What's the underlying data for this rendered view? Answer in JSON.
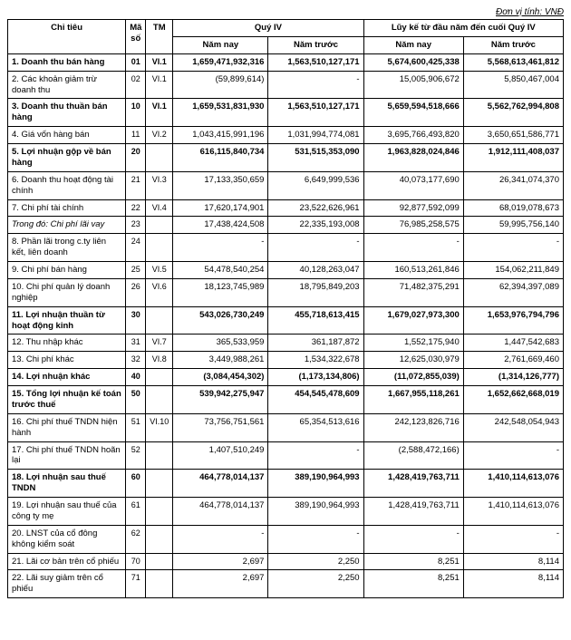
{
  "unit_line": "Đơn vị tính: VNĐ",
  "headers": {
    "chi_tieu": "Chỉ tiêu",
    "ma_so": "Mã số",
    "tm": "TM",
    "quy": "Quý IV",
    "luy_ke": "Lũy kế từ đầu năm đến cuối Quý IV",
    "nam_nay": "Năm nay",
    "nam_truoc": "Năm trước"
  },
  "rows": [
    {
      "bold": true,
      "label": "1. Doanh thu bán hàng",
      "ma": "01",
      "tm": "VI.1",
      "v": [
        "1,659,471,932,316",
        "1,563,510,127,171",
        "5,674,600,425,338",
        "5,568,613,461,812"
      ]
    },
    {
      "bold": false,
      "label": "2. Các khoản giảm trừ doanh thu",
      "ma": "02",
      "tm": "VI.1",
      "v": [
        "(59,899,614)",
        "-",
        "15,005,906,672",
        "5,850,467,004"
      ]
    },
    {
      "bold": true,
      "label": "3. Doanh thu thuần bán hàng",
      "ma": "10",
      "tm": "VI.1",
      "v": [
        "1,659,531,831,930",
        "1,563,510,127,171",
        "5,659,594,518,666",
        "5,562,762,994,808"
      ]
    },
    {
      "bold": false,
      "label": "4. Giá vốn hàng bán",
      "ma": "11",
      "tm": "VI.2",
      "v": [
        "1,043,415,991,196",
        "1,031,994,774,081",
        "3,695,766,493,820",
        "3,650,651,586,771"
      ]
    },
    {
      "bold": true,
      "label": "5. Lợi nhuận gộp về bán hàng",
      "ma": "20",
      "tm": "",
      "v": [
        "616,115,840,734",
        "531,515,353,090",
        "1,963,828,024,846",
        "1,912,111,408,037"
      ]
    },
    {
      "bold": false,
      "label": "6. Doanh thu hoạt động tài chính",
      "ma": "21",
      "tm": "VI.3",
      "v": [
        "17,133,350,659",
        "6,649,999,536",
        "40,073,177,690",
        "26,341,074,370"
      ]
    },
    {
      "bold": false,
      "label": "7. Chi phí tài chính",
      "ma": "22",
      "tm": "VI.4",
      "v": [
        "17,620,174,901",
        "23,522,626,961",
        "92,877,592,099",
        "68,019,078,673"
      ]
    },
    {
      "bold": false,
      "italic": true,
      "label": "Trong đó: Chi phí lãi vay",
      "ma": "23",
      "tm": "",
      "v": [
        "17,438,424,508",
        "22,335,193,008",
        "76,985,258,575",
        "59,995,756,140"
      ]
    },
    {
      "bold": false,
      "label": "8. Phần lãi trong c.ty liên kết, liên doanh",
      "ma": "24",
      "tm": "",
      "v": [
        "-",
        "-",
        "-",
        "-"
      ]
    },
    {
      "bold": false,
      "label": "9. Chi phí bán hàng",
      "ma": "25",
      "tm": "VI.5",
      "v": [
        "54,478,540,254",
        "40,128,263,047",
        "160,513,261,846",
        "154,062,211,849"
      ]
    },
    {
      "bold": false,
      "label": "10. Chi phí quản lý doanh nghiệp",
      "ma": "26",
      "tm": "VI.6",
      "v": [
        "18,123,745,989",
        "18,795,849,203",
        "71,482,375,291",
        "62,394,397,089"
      ]
    },
    {
      "bold": true,
      "label": "11. Lợi nhuận thuần từ hoạt động kinh",
      "ma": "30",
      "tm": "",
      "v": [
        "543,026,730,249",
        "455,718,613,415",
        "1,679,027,973,300",
        "1,653,976,794,796"
      ]
    },
    {
      "bold": false,
      "label": "12. Thu nhập khác",
      "ma": "31",
      "tm": "VI.7",
      "v": [
        "365,533,959",
        "361,187,872",
        "1,552,175,940",
        "1,447,542,683"
      ]
    },
    {
      "bold": false,
      "label": "13. Chi phí khác",
      "ma": "32",
      "tm": "VI.8",
      "v": [
        "3,449,988,261",
        "1,534,322,678",
        "12,625,030,979",
        "2,761,669,460"
      ]
    },
    {
      "bold": true,
      "label": "14. Lợi nhuận khác",
      "ma": "40",
      "tm": "",
      "v": [
        "(3,084,454,302)",
        "(1,173,134,806)",
        "(11,072,855,039)",
        "(1,314,126,777)"
      ]
    },
    {
      "bold": true,
      "label": "15. Tổng lợi nhuận kế toán trước thuế",
      "ma": "50",
      "tm": "",
      "v": [
        "539,942,275,947",
        "454,545,478,609",
        "1,667,955,118,261",
        "1,652,662,668,019"
      ]
    },
    {
      "bold": false,
      "label": "16. Chi phí thuế TNDN hiện hành",
      "ma": "51",
      "tm": "VI.10",
      "v": [
        "73,756,751,561",
        "65,354,513,616",
        "242,123,826,716",
        "242,548,054,943"
      ]
    },
    {
      "bold": false,
      "label": "17. Chi phí thuế TNDN hoãn lại",
      "ma": "52",
      "tm": "",
      "v": [
        "1,407,510,249",
        "-",
        "(2,588,472,166)",
        "-"
      ]
    },
    {
      "bold": true,
      "label": "18. Lợi nhuận sau thuế TNDN",
      "ma": "60",
      "tm": "",
      "v": [
        "464,778,014,137",
        "389,190,964,993",
        "1,428,419,763,711",
        "1,410,114,613,076"
      ]
    },
    {
      "bold": false,
      "label": "19. Lợi nhuận sau thuế của công ty mẹ",
      "ma": "61",
      "tm": "",
      "v": [
        "464,778,014,137",
        "389,190,964,993",
        "1,428,419,763,711",
        "1,410,114,613,076"
      ]
    },
    {
      "bold": false,
      "label": "20. LNST của cổ đông không kiểm soát",
      "ma": "62",
      "tm": "",
      "v": [
        "-",
        "-",
        "-",
        "-"
      ]
    },
    {
      "bold": false,
      "label": "21. Lãi cơ bản trên cổ phiếu",
      "ma": "70",
      "tm": "",
      "v": [
        "2,697",
        "2,250",
        "8,251",
        "8,114"
      ]
    },
    {
      "bold": false,
      "label": "22. Lãi suy giảm trên cổ phiếu",
      "ma": "71",
      "tm": "",
      "v": [
        "2,697",
        "2,250",
        "8,251",
        "8,114"
      ]
    }
  ]
}
